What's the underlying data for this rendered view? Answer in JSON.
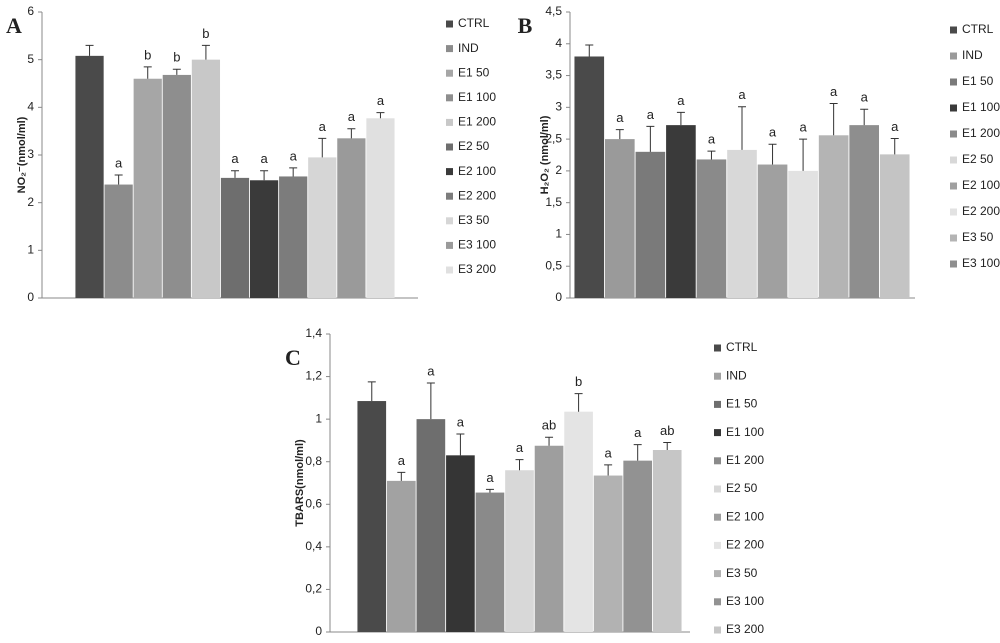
{
  "chart_data": [
    {
      "type": "bar",
      "panel_label": "A",
      "ylabel": "NO₂⁻(nmol/ml)",
      "categories": [
        "CTRL",
        "IND",
        "E1 50",
        "E1 100",
        "E1 200",
        "E2 50",
        "E2 100",
        "E2 200",
        "E3 50",
        "E3 100",
        "E3 200"
      ],
      "values": [
        5.08,
        2.38,
        4.6,
        4.68,
        5.0,
        2.52,
        2.47,
        2.55,
        2.95,
        3.35,
        3.77
      ],
      "errors": [
        0.22,
        0.2,
        0.25,
        0.12,
        0.3,
        0.15,
        0.2,
        0.18,
        0.4,
        0.2,
        0.12
      ],
      "annotations": [
        null,
        "a",
        "b",
        "b",
        "b",
        "a",
        "a",
        "a",
        "a",
        "a",
        "a"
      ],
      "colors": [
        "#4a4a4a",
        "#8c8c8c",
        "#a6a6a6",
        "#8e8e8e",
        "#c8c8c8",
        "#6e6e6e",
        "#3a3a3a",
        "#7c7c7c",
        "#d6d6d6",
        "#9a9a9a",
        "#e0e0e0"
      ],
      "ylim": [
        0,
        6
      ],
      "yticks": [
        0,
        1,
        2,
        3,
        4,
        5,
        6
      ]
    },
    {
      "type": "bar",
      "panel_label": "B",
      "ylabel": "H₂O₂ (nmol/ml)",
      "categories": [
        "CTRL",
        "IND",
        "E1 50",
        "E1 100",
        "E1 200",
        "E2 50",
        "E2 100",
        "E2 200",
        "E3 50",
        "E3 100",
        null
      ],
      "values": [
        3.8,
        2.5,
        2.3,
        2.72,
        2.18,
        2.33,
        2.1,
        2.0,
        2.56,
        2.72,
        2.26
      ],
      "errors": [
        0.18,
        0.15,
        0.4,
        0.2,
        0.13,
        0.68,
        0.32,
        0.5,
        0.5,
        0.25,
        0.25
      ],
      "annotations": [
        null,
        "a",
        "a",
        "a",
        "a",
        "a",
        "a",
        "a",
        "a",
        "a",
        "a"
      ],
      "colors": [
        "#4a4a4a",
        "#9a9a9a",
        "#7a7a7a",
        "#3a3a3a",
        "#8a8a8a",
        "#d8d8d8",
        "#a0a0a0",
        "#e2e2e2",
        "#b4b4b4",
        "#8e8e8e",
        "#c4c4c4"
      ],
      "ylim": [
        0,
        4.5
      ],
      "yticks": [
        0,
        {
          "value": 0.5,
          "label": "0,5"
        },
        1,
        {
          "value": 1.5,
          "label": "1,5"
        },
        2,
        {
          "value": 2.5,
          "label": "2,5"
        },
        3,
        {
          "value": 3.5,
          "label": "3,5"
        },
        4,
        {
          "value": 4.5,
          "label": "4,5"
        }
      ]
    },
    {
      "type": "bar",
      "panel_label": "C",
      "ylabel": "TBARS(nmol/ml)",
      "categories": [
        "CTRL",
        "IND",
        "E1 50",
        "E1 100",
        "E1 200",
        "E2 50",
        "E2 100",
        "E2 200",
        "E3 50",
        "E3 100",
        "E3 200"
      ],
      "values": [
        1.085,
        0.71,
        1.0,
        0.83,
        0.655,
        0.76,
        0.875,
        1.035,
        0.735,
        0.805,
        0.855
      ],
      "errors": [
        0.09,
        0.04,
        0.17,
        0.1,
        0.015,
        0.05,
        0.04,
        0.085,
        0.05,
        0.075,
        0.035
      ],
      "annotations": [
        null,
        "a",
        "a",
        "a",
        "a",
        "a",
        "ab",
        "b",
        "a",
        "a",
        "ab"
      ],
      "colors": [
        "#4a4a4a",
        "#a2a2a2",
        "#6e6e6e",
        "#353535",
        "#8a8a8a",
        "#d8d8d8",
        "#9e9e9e",
        "#e4e4e4",
        "#b2b2b2",
        "#929292",
        "#c6c6c6"
      ],
      "ylim": [
        0,
        1.4
      ],
      "yticks": [
        0,
        {
          "value": 0.2,
          "label": "0,2"
        },
        {
          "value": 0.4,
          "label": "0,4"
        },
        {
          "value": 0.6,
          "label": "0,6"
        },
        {
          "value": 0.8,
          "label": "0,8"
        },
        1,
        {
          "value": 1.2,
          "label": "1,2"
        },
        {
          "value": 1.4,
          "label": "1,4"
        }
      ]
    }
  ]
}
